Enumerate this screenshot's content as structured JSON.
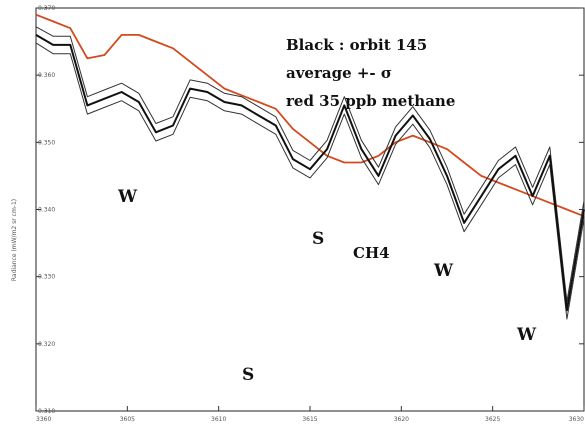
{
  "chart_data": {
    "type": "line",
    "xlabel": "",
    "ylabel": "Radiance (mW/m2 sr cm-1)",
    "x_tick_labels": [
      "3360",
      "3605",
      "3610",
      "3615",
      "3620",
      "3625",
      "3630"
    ],
    "y_tick_labels": [
      "0.370",
      "0.360",
      "0.350",
      "0.340",
      "0.330",
      "0.320",
      "0.310"
    ],
    "ylim": [
      0.31,
      0.37
    ],
    "legend_lines": [
      "Black : orbit 145",
      "average +- σ",
      "red 35 ppb methane"
    ],
    "annotations": [
      "W",
      "S",
      "S",
      "CH4",
      "W",
      "W"
    ],
    "x": [
      0,
      1,
      2,
      3,
      4,
      5,
      6,
      7,
      8,
      9,
      10,
      11,
      12,
      13,
      14,
      15,
      16,
      17,
      18,
      19,
      20,
      21,
      22,
      23,
      24,
      25,
      26,
      27,
      28,
      29,
      30,
      31,
      32
    ],
    "series": [
      {
        "name": "Black : orbit 145",
        "color": "#111111",
        "role": "mean",
        "values": [
          0.366,
          0.3645,
          0.3645,
          0.3555,
          0.3565,
          0.3575,
          0.356,
          0.3515,
          0.3525,
          0.358,
          0.3575,
          0.356,
          0.3555,
          0.354,
          0.3525,
          0.3475,
          0.346,
          0.349,
          0.3555,
          0.349,
          0.345,
          0.351,
          0.354,
          0.3505,
          0.345,
          0.338,
          0.342,
          0.346,
          0.348,
          0.342,
          0.348,
          0.325,
          0.34
        ]
      },
      {
        "name": "average + σ",
        "color": "#333333",
        "role": "upper",
        "values": [
          0.3672,
          0.3658,
          0.3658,
          0.3568,
          0.3578,
          0.3588,
          0.3573,
          0.3528,
          0.3538,
          0.3593,
          0.3588,
          0.3573,
          0.3568,
          0.3553,
          0.3538,
          0.3488,
          0.3473,
          0.3503,
          0.3568,
          0.3503,
          0.3463,
          0.3523,
          0.3553,
          0.3518,
          0.3463,
          0.3393,
          0.3433,
          0.3473,
          0.3493,
          0.3433,
          0.3493,
          0.3263,
          0.3413
        ]
      },
      {
        "name": "average - σ",
        "color": "#333333",
        "role": "lower",
        "values": [
          0.3648,
          0.3632,
          0.3632,
          0.3542,
          0.3552,
          0.3562,
          0.3547,
          0.3502,
          0.3512,
          0.3567,
          0.3562,
          0.3547,
          0.3542,
          0.3527,
          0.3512,
          0.3462,
          0.3447,
          0.3477,
          0.3542,
          0.3477,
          0.3437,
          0.3497,
          0.3527,
          0.3492,
          0.3437,
          0.3367,
          0.3407,
          0.3447,
          0.3467,
          0.3407,
          0.3467,
          0.3237,
          0.3387
        ]
      },
      {
        "name": "red 35 ppb methane",
        "color": "#d24a1e",
        "role": "model",
        "values": [
          0.369,
          0.368,
          0.367,
          0.3625,
          0.363,
          0.366,
          0.366,
          0.365,
          0.364,
          0.362,
          0.36,
          0.358,
          0.357,
          0.356,
          0.355,
          0.352,
          0.35,
          0.348,
          0.347,
          0.347,
          0.348,
          0.35,
          0.351,
          0.35,
          0.349,
          0.347,
          0.345,
          0.344,
          0.343,
          0.342,
          0.341,
          0.34,
          0.339
        ]
      }
    ]
  }
}
